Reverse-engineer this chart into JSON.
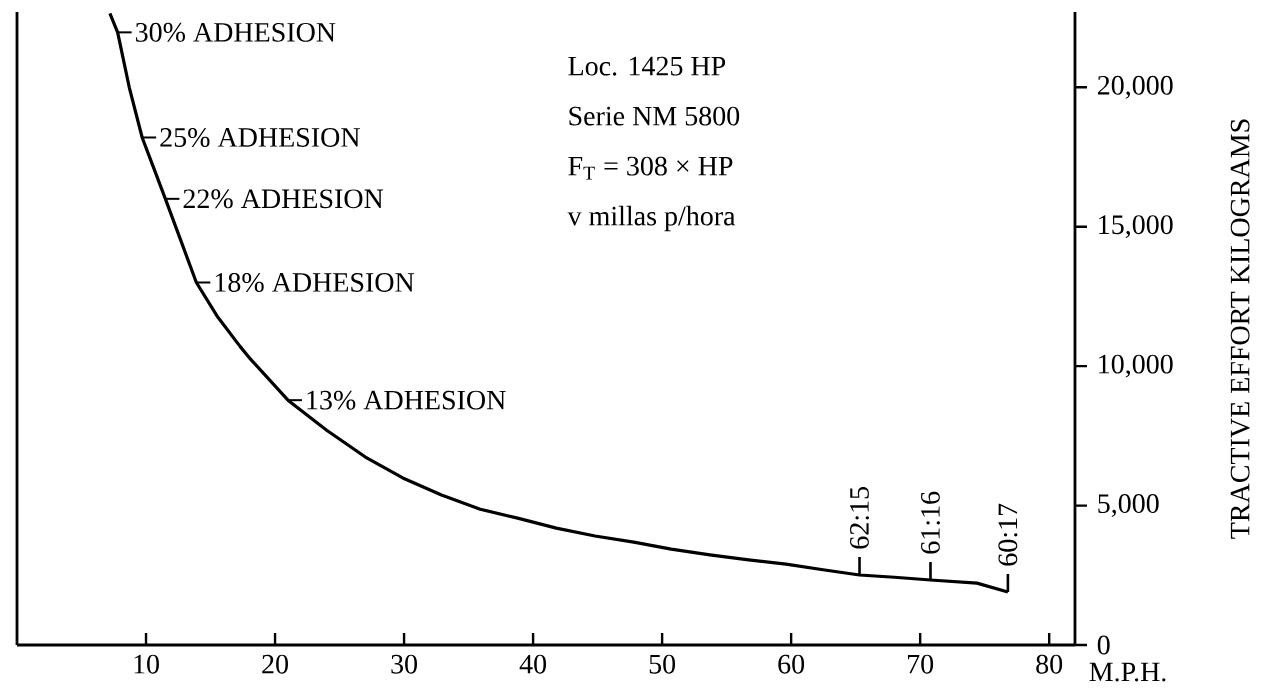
{
  "chart_data": {
    "type": "line",
    "xlabel": "M.P.H.",
    "ylabel": "TRACTIVE EFFORT   KILOGRAMS",
    "xlim": [
      0,
      82
    ],
    "ylim": [
      0,
      22700
    ],
    "xticks": [
      10,
      20,
      30,
      40,
      50,
      60,
      70,
      80
    ],
    "yticks": [
      0,
      {
        "value": 5000,
        "label": "5,000"
      },
      {
        "value": 10000,
        "label": "10,000"
      },
      {
        "value": 15000,
        "label": "15,000"
      },
      {
        "value": 20000,
        "label": "20,000"
      }
    ],
    "series": [
      {
        "color": "#000000",
        "x": [
          7.2,
          7.8,
          8.7,
          9.7,
          10.6,
          11.5,
          12.7,
          13.9,
          15.5,
          17.3,
          18.1,
          21.0,
          24.0,
          27.0,
          29.9,
          32.9,
          35.9,
          38.8,
          41.8,
          44.8,
          47.8,
          50.7,
          53.7,
          56.7,
          59.6,
          62.6,
          65.3,
          68.0,
          70.8,
          74.4,
          76.8
        ],
        "values": [
          22650,
          21970,
          20000,
          18200,
          17100,
          16000,
          14500,
          13000,
          11800,
          10700,
          10250,
          8780,
          7700,
          6740,
          5990,
          5380,
          4870,
          4550,
          4190,
          3910,
          3690,
          3440,
          3230,
          3050,
          2900,
          2690,
          2510,
          2430,
          2330,
          2220,
          1900
        ]
      }
    ],
    "annotations": [
      "Loc. 1425 HP",
      "Serie NM 5800",
      "F$_{T}$ = 308 × HP",
      "v millas p/hora",
      {
        "text": "30% ADHESION",
        "x": 7.8,
        "y": 21970
      },
      {
        "text": "25% ADHESION",
        "x": 9.7,
        "y": 18200
      },
      {
        "text": "22% ADHESION",
        "x": 11.5,
        "y": 16000
      },
      {
        "text": "18% ADHESION",
        "x": 13.9,
        "y": 13000
      },
      {
        "text": "13% ADHESION",
        "x": 21.0,
        "y": 8780
      },
      {
        "text": "62:15",
        "x": 65.3,
        "y": 2510
      },
      {
        "text": "61:16",
        "x": 70.8,
        "y": 2330
      },
      {
        "text": "60:17",
        "x": 76.8,
        "y": 1900
      }
    ]
  }
}
